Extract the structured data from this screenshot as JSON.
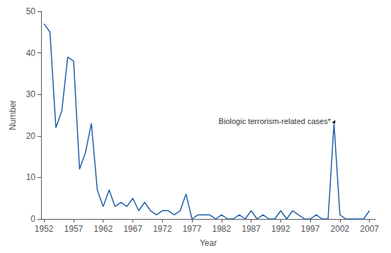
{
  "chart_data": {
    "type": "line",
    "xlabel": "Year",
    "ylabel": "Number",
    "color": "#1f5fa6",
    "x": [
      1952,
      1953,
      1954,
      1955,
      1956,
      1957,
      1958,
      1959,
      1960,
      1961,
      1962,
      1963,
      1964,
      1965,
      1966,
      1967,
      1968,
      1969,
      1970,
      1971,
      1972,
      1973,
      1974,
      1975,
      1976,
      1977,
      1978,
      1979,
      1980,
      1981,
      1982,
      1983,
      1984,
      1985,
      1986,
      1987,
      1988,
      1989,
      1990,
      1991,
      1992,
      1993,
      1994,
      1995,
      1996,
      1997,
      1998,
      1999,
      2000,
      2001,
      2002,
      2003,
      2004,
      2005,
      2006,
      2007
    ],
    "values": [
      47,
      45,
      22,
      26,
      39,
      38,
      12,
      16,
      23,
      7,
      3,
      7,
      3,
      4,
      3,
      5,
      2,
      4,
      2,
      1,
      2,
      2,
      1,
      2,
      6,
      0,
      1,
      1,
      1,
      0,
      1,
      0,
      0,
      1,
      0,
      2,
      0,
      1,
      0,
      0,
      2,
      0,
      2,
      1,
      0,
      0,
      1,
      0,
      0,
      23,
      1,
      0,
      0,
      0,
      0,
      2
    ],
    "xlim": [
      1951.5,
      2008
    ],
    "ylim": [
      0,
      50
    ],
    "xticks": [
      1952,
      1957,
      1962,
      1967,
      1972,
      1977,
      1982,
      1987,
      1992,
      1997,
      2002,
      2007
    ],
    "yticks": [
      0,
      10,
      20,
      30,
      40,
      50
    ],
    "grid": false,
    "annotations": [
      {
        "text": "Biologic terrorism-related cases*",
        "xy": [
          2001.2,
          23
        ],
        "xytext": [
          1981.5,
          23.5
        ]
      }
    ]
  }
}
